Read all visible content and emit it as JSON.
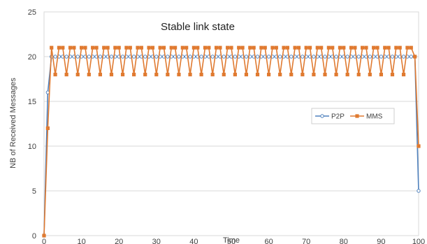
{
  "chart_data": {
    "type": "line",
    "title": "Stable link state",
    "xlabel": "Time",
    "ylabel": "NB of Received Messages",
    "xlim": [
      0,
      100
    ],
    "ylim": [
      0,
      25
    ],
    "xticks": [
      0,
      10,
      20,
      30,
      40,
      50,
      60,
      70,
      80,
      90,
      100
    ],
    "yticks": [
      0,
      5,
      10,
      15,
      20,
      25
    ],
    "grid": "horizontal",
    "legend_position": "right",
    "series": [
      {
        "name": "P2P",
        "color": "#4f81bd",
        "marker": "circle-open",
        "x": [
          0,
          1,
          2,
          3,
          4,
          5,
          6,
          7,
          8,
          9,
          10,
          11,
          12,
          13,
          14,
          15,
          16,
          17,
          18,
          19,
          20,
          21,
          22,
          23,
          24,
          25,
          26,
          27,
          28,
          29,
          30,
          31,
          32,
          33,
          34,
          35,
          36,
          37,
          38,
          39,
          40,
          41,
          42,
          43,
          44,
          45,
          46,
          47,
          48,
          49,
          50,
          51,
          52,
          53,
          54,
          55,
          56,
          57,
          58,
          59,
          60,
          61,
          62,
          63,
          64,
          65,
          66,
          67,
          68,
          69,
          70,
          71,
          72,
          73,
          74,
          75,
          76,
          77,
          78,
          79,
          80,
          81,
          82,
          83,
          84,
          85,
          86,
          87,
          88,
          89,
          90,
          91,
          92,
          93,
          94,
          95,
          96,
          97,
          98,
          99,
          100
        ],
        "y": [
          0,
          16,
          20,
          20,
          20,
          20,
          20,
          20,
          20,
          20,
          20,
          20,
          20,
          20,
          20,
          20,
          20,
          20,
          20,
          20,
          20,
          20,
          20,
          20,
          20,
          20,
          20,
          20,
          20,
          20,
          20,
          20,
          20,
          20,
          20,
          20,
          20,
          20,
          20,
          20,
          20,
          20,
          20,
          20,
          20,
          20,
          20,
          20,
          20,
          20,
          20,
          20,
          20,
          20,
          20,
          20,
          20,
          20,
          20,
          20,
          20,
          20,
          20,
          20,
          20,
          20,
          20,
          20,
          20,
          20,
          20,
          20,
          20,
          20,
          20,
          20,
          20,
          20,
          20,
          20,
          20,
          20,
          20,
          20,
          20,
          20,
          20,
          20,
          20,
          20,
          20,
          20,
          20,
          20,
          20,
          20,
          20,
          20,
          20,
          20,
          5
        ]
      },
      {
        "name": "MMS",
        "color": "#e07a30",
        "marker": "square",
        "x": [
          0,
          1,
          2,
          3,
          4,
          5,
          6,
          7,
          8,
          9,
          10,
          11,
          12,
          13,
          14,
          15,
          16,
          17,
          18,
          19,
          20,
          21,
          22,
          23,
          24,
          25,
          26,
          27,
          28,
          29,
          30,
          31,
          32,
          33,
          34,
          35,
          36,
          37,
          38,
          39,
          40,
          41,
          42,
          43,
          44,
          45,
          46,
          47,
          48,
          49,
          50,
          51,
          52,
          53,
          54,
          55,
          56,
          57,
          58,
          59,
          60,
          61,
          62,
          63,
          64,
          65,
          66,
          67,
          68,
          69,
          70,
          71,
          72,
          73,
          74,
          75,
          76,
          77,
          78,
          79,
          80,
          81,
          82,
          83,
          84,
          85,
          86,
          87,
          88,
          89,
          90,
          91,
          92,
          93,
          94,
          95,
          96,
          97,
          98,
          99,
          100
        ],
        "y": [
          0,
          12,
          21,
          18,
          21,
          21,
          18,
          21,
          21,
          18,
          21,
          21,
          18,
          21,
          21,
          18,
          21,
          21,
          18,
          21,
          21,
          18,
          21,
          21,
          18,
          21,
          21,
          18,
          21,
          21,
          18,
          21,
          21,
          18,
          21,
          21,
          18,
          21,
          21,
          18,
          21,
          21,
          18,
          21,
          21,
          18,
          21,
          21,
          18,
          21,
          21,
          18,
          21,
          21,
          18,
          21,
          21,
          18,
          21,
          21,
          18,
          21,
          21,
          18,
          21,
          21,
          18,
          21,
          21,
          18,
          21,
          21,
          18,
          21,
          21,
          18,
          21,
          21,
          18,
          21,
          21,
          18,
          21,
          21,
          18,
          21,
          21,
          18,
          21,
          21,
          18,
          21,
          21,
          18,
          21,
          21,
          18,
          21,
          21,
          20,
          10
        ]
      }
    ]
  }
}
